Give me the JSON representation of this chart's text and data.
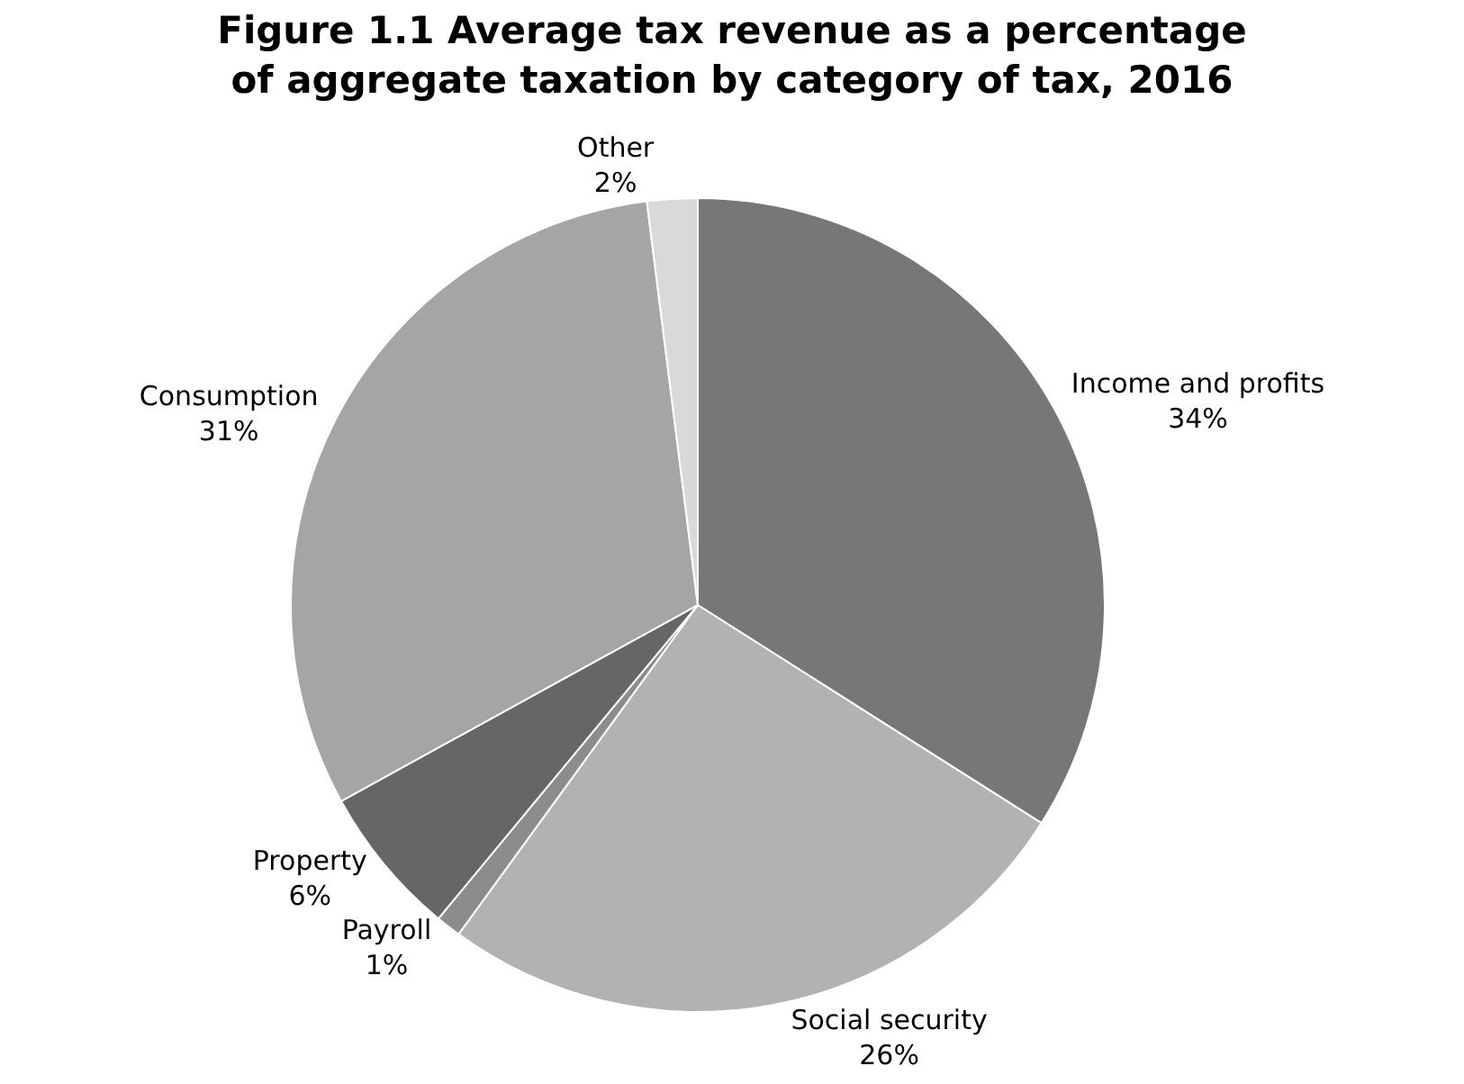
{
  "chart_data": {
    "type": "pie",
    "title": "Figure 1.1 Average tax revenue as a percentage of aggregate taxation by category of tax, 2016",
    "categories": [
      "Income and profits",
      "Social security",
      "Payroll",
      "Property",
      "Consumption",
      "Other"
    ],
    "values": [
      34,
      26,
      1,
      6,
      31,
      2
    ],
    "value_labels": [
      "34%",
      "26%",
      "1%",
      "6%",
      "31%",
      "2%"
    ],
    "colors": [
      "#777777",
      "#b2b2b2",
      "#8c8c8c",
      "#666666",
      "#a5a5a5",
      "#d9d9d9"
    ],
    "legend": false
  }
}
